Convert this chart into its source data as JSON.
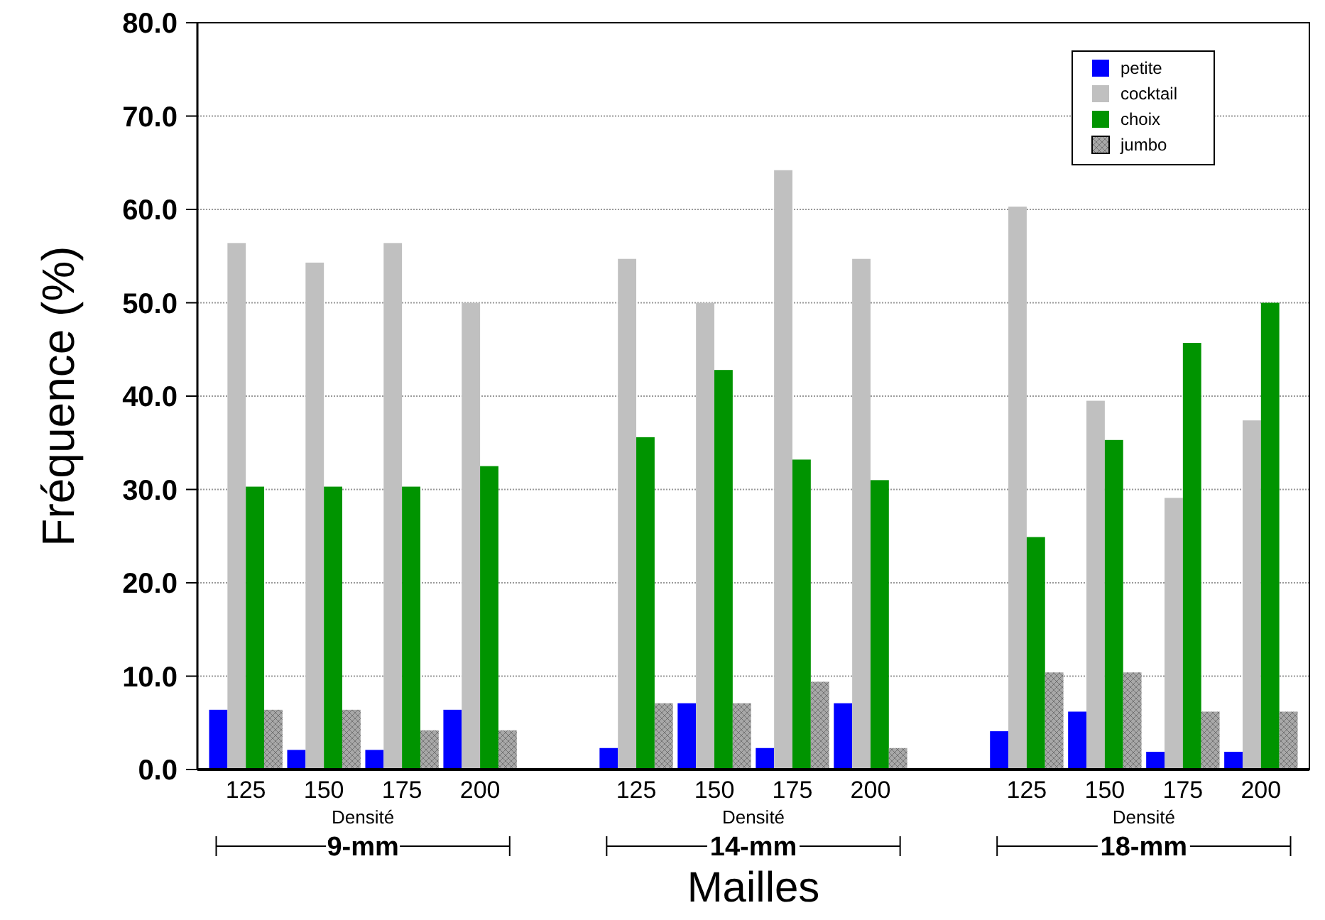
{
  "chart_data": {
    "type": "bar",
    "xlabel": "Mailles",
    "ylabel": "Fréquence (%)",
    "categories": [
      "125",
      "150",
      "175",
      "200",
      null,
      "125",
      "150",
      "175",
      "200",
      null,
      "125",
      "150",
      "175",
      "200"
    ],
    "series": [
      {
        "name": "petite",
        "color": "#0000ff",
        "values": [
          6.4,
          2.1,
          2.1,
          6.4,
          null,
          2.3,
          7.1,
          2.3,
          7.1,
          null,
          4.1,
          6.2,
          1.9,
          1.9
        ]
      },
      {
        "name": "cocktail",
        "color": "#c0c0c0",
        "values": [
          56.4,
          54.3,
          56.4,
          50.0,
          null,
          54.7,
          50.0,
          64.2,
          54.7,
          null,
          60.3,
          39.5,
          29.1,
          37.4
        ]
      },
      {
        "name": "choix",
        "color": "#009400",
        "values": [
          30.3,
          30.3,
          30.3,
          32.5,
          null,
          35.6,
          42.8,
          33.2,
          31.0,
          null,
          24.9,
          35.3,
          45.7,
          50.0
        ]
      },
      {
        "name": "jumbo",
        "color": "#a8a8a8",
        "values": [
          6.4,
          6.4,
          4.2,
          4.2,
          null,
          7.1,
          7.1,
          9.4,
          2.3,
          null,
          10.4,
          10.4,
          6.2,
          6.2
        ]
      }
    ],
    "ylim": [
      0,
      80
    ],
    "yticks": [
      {
        "value": 0,
        "label": "0.0"
      },
      {
        "value": 10,
        "label": "10.0"
      },
      {
        "value": 20,
        "label": "20.0"
      },
      {
        "value": 30,
        "label": "30.0"
      },
      {
        "value": 40,
        "label": "40.0"
      },
      {
        "value": 50,
        "label": "50.0"
      },
      {
        "value": 60,
        "label": "60.0"
      },
      {
        "value": 70,
        "label": "70.0"
      },
      {
        "value": 80,
        "label": "80.0"
      }
    ],
    "grid": "y",
    "legend": "top right",
    "annotations": [
      "Densité",
      "9-mm",
      "Densité",
      "14-mm",
      "Densité",
      "18-mm"
    ]
  }
}
